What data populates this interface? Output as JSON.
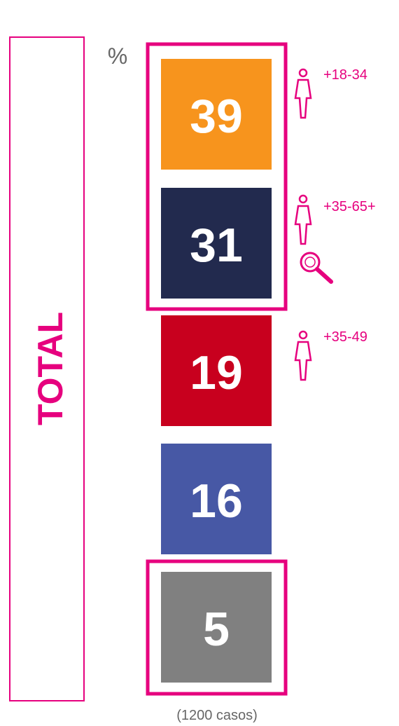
{
  "unit": "%",
  "side_label": "TOTAL",
  "blocks": [
    {
      "value": 39
    },
    {
      "value": 31
    },
    {
      "value": 19
    },
    {
      "value": 16
    },
    {
      "value": 5
    }
  ],
  "annotations": [
    {
      "label": "+18-34"
    },
    {
      "label": "+35-65+"
    },
    {
      "label": "+35-49"
    }
  ],
  "footnote": "(1200 casos)"
}
